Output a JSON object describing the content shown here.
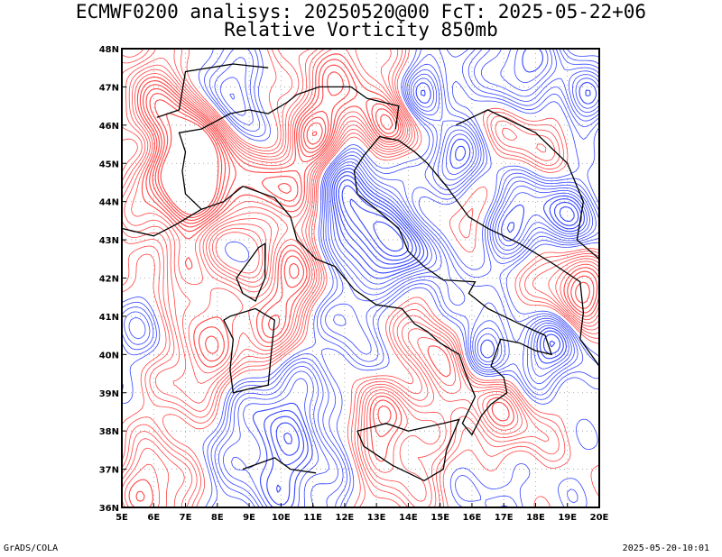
{
  "title": {
    "line1": "ECMWF0200 analisys: 20250520@00 FcT: 2025-05-22+06",
    "line2": "Relative Vorticity 850mb"
  },
  "footer": {
    "left": "GrADS/COLA",
    "right": "2025-05-20-10:01"
  },
  "map": {
    "lon_range": [
      5,
      20
    ],
    "lat_range": [
      36,
      48
    ],
    "x_ticks": [
      "5E",
      "6E",
      "7E",
      "8E",
      "9E",
      "10E",
      "11E",
      "12E",
      "13E",
      "14E",
      "15E",
      "16E",
      "17E",
      "18E",
      "19E",
      "20E"
    ],
    "y_ticks": [
      "36N",
      "37N",
      "38N",
      "39N",
      "40N",
      "41N",
      "42N",
      "43N",
      "44N",
      "45N",
      "46N",
      "47N",
      "48N"
    ],
    "colors": {
      "positive": "#ff4444",
      "negative": "#3344ff",
      "border": "#000000",
      "grid": "#999999"
    },
    "field": "Relative Vorticity 850mb",
    "contour_colors_meaning": [
      "red = positive vorticity",
      "blue = negative vorticity"
    ]
  }
}
